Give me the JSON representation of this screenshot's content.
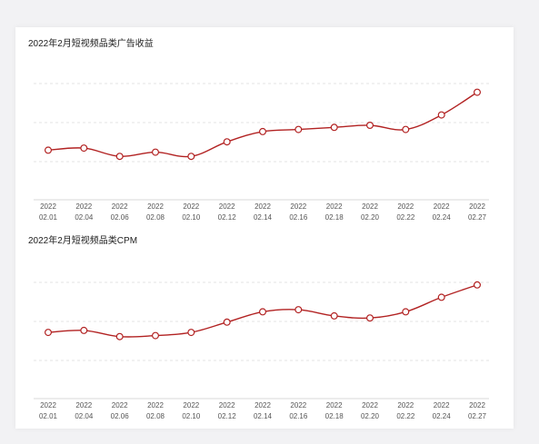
{
  "colors": {
    "line": "#b22222",
    "marker_fill": "#ffffff",
    "grid": "#e3e3e3",
    "axis": "#d9d9d9",
    "text": "#555555"
  },
  "chart_data": [
    {
      "type": "line",
      "title": "2022年2月短视频品类广告收益",
      "categories": [
        [
          "2022",
          "02.01"
        ],
        [
          "2022",
          "02.04"
        ],
        [
          "2022",
          "02.06"
        ],
        [
          "2022",
          "02.08"
        ],
        [
          "2022",
          "02.10"
        ],
        [
          "2022",
          "02.12"
        ],
        [
          "2022",
          "02.14"
        ],
        [
          "2022",
          "02.16"
        ],
        [
          "2022",
          "02.18"
        ],
        [
          "2022",
          "02.20"
        ],
        [
          "2022",
          "02.22"
        ],
        [
          "2022",
          "02.24"
        ],
        [
          "2022",
          "02.27"
        ]
      ],
      "values": [
        24,
        25,
        21,
        23,
        21,
        28,
        33,
        34,
        35,
        36,
        34,
        41,
        52
      ],
      "ylim": [
        0,
        65
      ],
      "grid": true
    },
    {
      "type": "line",
      "title": "2022年2月短视频品类CPM",
      "categories": [
        [
          "2022",
          "02.01"
        ],
        [
          "2022",
          "02.04"
        ],
        [
          "2022",
          "02.06"
        ],
        [
          "2022",
          "02.08"
        ],
        [
          "2022",
          "02.10"
        ],
        [
          "2022",
          "02.12"
        ],
        [
          "2022",
          "02.14"
        ],
        [
          "2022",
          "02.16"
        ],
        [
          "2022",
          "02.18"
        ],
        [
          "2022",
          "02.20"
        ],
        [
          "2022",
          "02.22"
        ],
        [
          "2022",
          "02.24"
        ],
        [
          "2022",
          "02.27"
        ]
      ],
      "values": [
        32,
        33,
        30,
        30.5,
        32,
        37,
        42,
        43,
        40,
        39,
        42,
        49,
        55
      ],
      "ylim": [
        0,
        65
      ],
      "grid": true
    }
  ]
}
